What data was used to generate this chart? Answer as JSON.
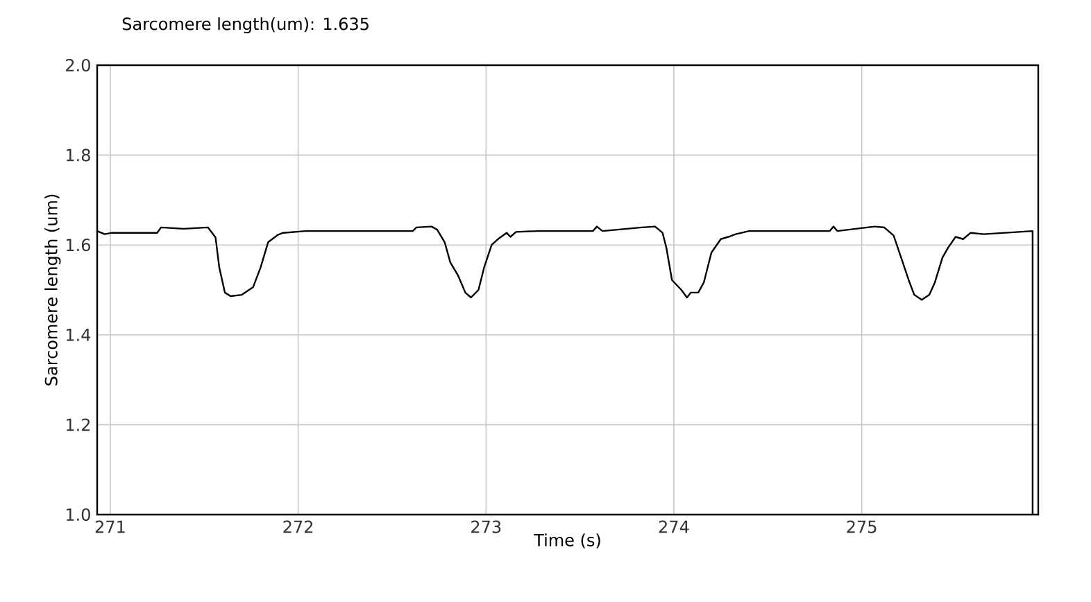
{
  "chart_data": {
    "type": "line",
    "title": "Sarcomere length(um): 1.635",
    "xlabel": "Time (s)",
    "ylabel": "Sarcomere length (um)",
    "x": [
      270.93,
      270.97,
      271.01,
      271.25,
      271.27,
      271.39,
      271.52,
      271.56,
      271.58,
      271.61,
      271.64,
      271.7,
      271.76,
      271.8,
      271.84,
      271.89,
      271.92,
      272.04,
      272.61,
      272.63,
      272.71,
      272.74,
      272.78,
      272.81,
      272.85,
      272.89,
      272.92,
      272.96,
      272.99,
      273.03,
      273.07,
      273.11,
      273.13,
      273.16,
      273.28,
      273.57,
      273.59,
      273.62,
      273.83,
      273.9,
      273.94,
      273.96,
      273.99,
      274.04,
      274.07,
      274.09,
      274.13,
      274.16,
      274.2,
      274.25,
      274.29,
      274.33,
      274.4,
      274.83,
      274.85,
      274.87,
      275.03,
      275.07,
      275.12,
      275.17,
      275.21,
      275.25,
      275.28,
      275.32,
      275.36,
      275.39,
      275.43,
      275.46,
      275.5,
      275.54,
      275.58,
      275.65,
      275.91,
      275.91
    ],
    "series": [
      {
        "color": "#000000",
        "values": [
          1.631,
          1.624,
          1.627,
          1.627,
          1.639,
          1.636,
          1.639,
          1.617,
          1.55,
          1.494,
          1.486,
          1.489,
          1.506,
          1.55,
          1.606,
          1.622,
          1.627,
          1.631,
          1.631,
          1.639,
          1.641,
          1.634,
          1.606,
          1.561,
          1.533,
          1.494,
          1.483,
          1.5,
          1.55,
          1.6,
          1.615,
          1.627,
          1.618,
          1.629,
          1.631,
          1.631,
          1.641,
          1.631,
          1.639,
          1.641,
          1.627,
          1.594,
          1.522,
          1.5,
          1.483,
          1.494,
          1.494,
          1.517,
          1.583,
          1.613,
          1.618,
          1.624,
          1.631,
          1.631,
          1.641,
          1.631,
          1.639,
          1.641,
          1.639,
          1.621,
          1.572,
          1.522,
          1.489,
          1.478,
          1.489,
          1.517,
          1.572,
          1.594,
          1.618,
          1.613,
          1.627,
          1.624,
          1.631,
          1.0
        ]
      }
    ],
    "xlim": [
      270.93,
      275.94
    ],
    "ylim": [
      1.0,
      2.0
    ],
    "xticks": [
      271,
      272,
      273,
      274,
      275
    ],
    "yticks": [
      {
        "value": 1.0,
        "label": "1.0"
      },
      1.2,
      1.4,
      1.6,
      1.8,
      {
        "value": 2.0,
        "label": "2.0"
      }
    ],
    "grid": true,
    "marker": "none",
    "line_style": "solid"
  }
}
